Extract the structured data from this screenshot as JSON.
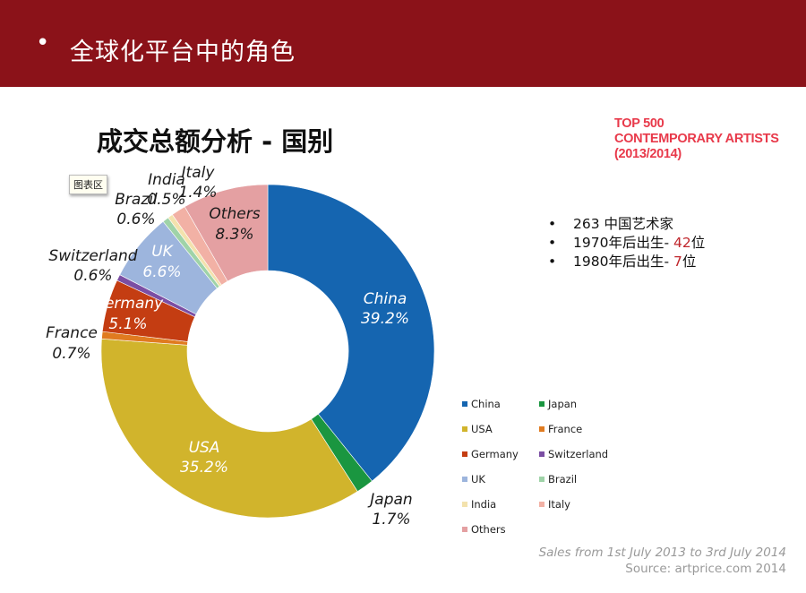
{
  "header": {
    "bullet": "•",
    "title": "全球化平台中的角色"
  },
  "chart_title": "成交总额分析 - 国别",
  "chart_area_tag": "图表区",
  "logo": {
    "line1": "TOP 500",
    "line2": "CONTEMPORARY ARTISTS",
    "line3": "(2013/2014)"
  },
  "notes": [
    {
      "bullet": "•",
      "pre": "263 中国艺术家",
      "num": "",
      "post": ""
    },
    {
      "bullet": "•",
      "pre": "1970年后出生- ",
      "num": "42",
      "post": "位"
    },
    {
      "bullet": "•",
      "pre": "1980年后出生- ",
      "num": "7",
      "post": "位"
    }
  ],
  "source": {
    "line1": "Sales from 1st July 2013 to 3rd July 2014",
    "line2": "Source: artprice.com 2014"
  },
  "colors": {
    "header_bg": "#8b1219",
    "accent_red": "#c0272d",
    "logo_red": "#e8394a"
  },
  "chart_data": {
    "type": "pie",
    "donut": true,
    "legend_position": "bottom-right",
    "slices": [
      {
        "name": "China",
        "value": 39.2,
        "label": "39.2%",
        "color": "#1565b0"
      },
      {
        "name": "Japan",
        "value": 1.7,
        "label": "1.7%",
        "color": "#1a9640"
      },
      {
        "name": "USA",
        "value": 35.2,
        "label": "35.2%",
        "color": "#d1b42c"
      },
      {
        "name": "France",
        "value": 0.7,
        "label": "0.7%",
        "color": "#e07b20"
      },
      {
        "name": "Germany",
        "value": 5.1,
        "label": "5.1%",
        "color": "#c43d12"
      },
      {
        "name": "Switzerland",
        "value": 0.6,
        "label": "0.6%",
        "color": "#7b4ea3"
      },
      {
        "name": "UK",
        "value": 6.6,
        "label": "6.6%",
        "color": "#9db5dd"
      },
      {
        "name": "Brazil",
        "value": 0.6,
        "label": "0.6%",
        "color": "#9fd3a8"
      },
      {
        "name": "India",
        "value": 0.5,
        "label": "0.5%",
        "color": "#f3e2ad"
      },
      {
        "name": "Italy",
        "value": 1.4,
        "label": "1.4%",
        "color": "#f2b1a5"
      },
      {
        "name": "Others",
        "value": 8.3,
        "label": "8.3%",
        "color": "#e4a0a2"
      }
    ]
  }
}
